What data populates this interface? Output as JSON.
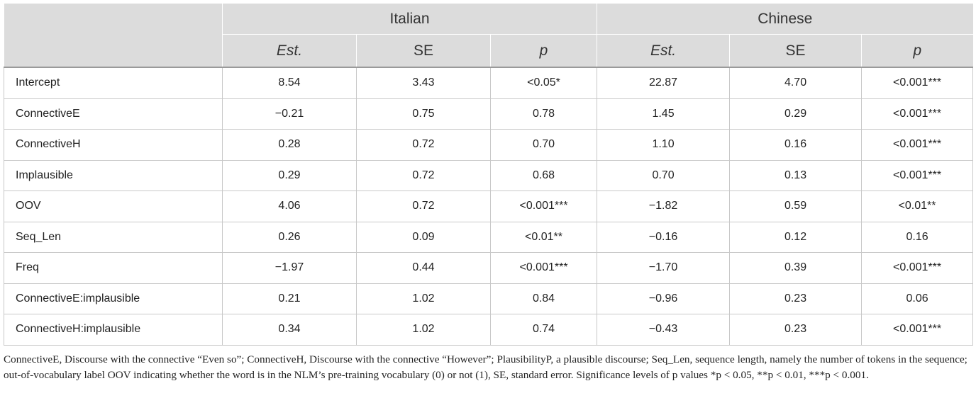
{
  "table": {
    "groups": [
      "Italian",
      "Chinese"
    ],
    "subheaders": [
      "Est.",
      "SE",
      "p",
      "Est.",
      "SE",
      "p"
    ],
    "rows": [
      {
        "label": "Intercept",
        "cells": [
          "8.54",
          "3.43",
          "<0.05*",
          "22.87",
          "4.70",
          "<0.001***"
        ]
      },
      {
        "label": "ConnectiveE",
        "cells": [
          "−0.21",
          "0.75",
          "0.78",
          "1.45",
          "0.29",
          "<0.001***"
        ]
      },
      {
        "label": "ConnectiveH",
        "cells": [
          "0.28",
          "0.72",
          "0.70",
          "1.10",
          "0.16",
          "<0.001***"
        ]
      },
      {
        "label": "Implausible",
        "cells": [
          "0.29",
          "0.72",
          "0.68",
          "0.70",
          "0.13",
          "<0.001***"
        ]
      },
      {
        "label": "OOV",
        "cells": [
          "4.06",
          "0.72",
          "<0.001***",
          "−1.82",
          "0.59",
          "<0.01**"
        ]
      },
      {
        "label": "Seq_Len",
        "cells": [
          "0.26",
          "0.09",
          "<0.01**",
          "−0.16",
          "0.12",
          "0.16"
        ]
      },
      {
        "label": "Freq",
        "cells": [
          "−1.97",
          "0.44",
          "<0.001***",
          "−1.70",
          "0.39",
          "<0.001***"
        ]
      },
      {
        "label": "ConnectiveE:implausible",
        "cells": [
          "0.21",
          "1.02",
          "0.84",
          "−0.96",
          "0.23",
          "0.06"
        ]
      },
      {
        "label": "ConnectiveH:implausible",
        "cells": [
          "0.34",
          "1.02",
          "0.74",
          "−0.43",
          "0.23",
          "<0.001***"
        ]
      }
    ]
  },
  "footnote": "ConnectiveE, Discourse with the connective “Even so”; ConnectiveH, Discourse with the connective “However”; PlausibilityP, a plausible discourse; Seq_Len, sequence length, namely the number of tokens in the sequence; out-of-vocabulary label OOV indicating whether the word is in the NLM’s pre-training vocabulary (0) or not (1), SE, standard error. Significance levels of p values *p < 0.05, **p < 0.01, ***p < 0.001."
}
